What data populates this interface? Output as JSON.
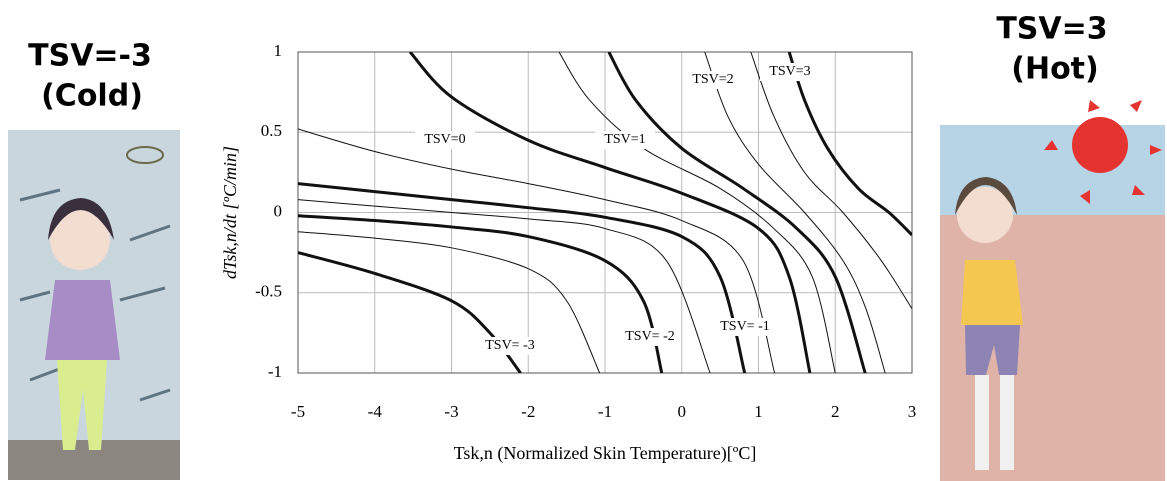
{
  "left_panel": {
    "title": "TSV=-3",
    "subtitle": "(Cold)"
  },
  "right_panel": {
    "title": "TSV=3",
    "subtitle": "(Hot)"
  },
  "chart_data": {
    "type": "line",
    "xlabel": "Tsk,n (Normalized Skin Temperature)[ºC]",
    "ylabel": "dTsk,n/dt [ºC/min]",
    "xlim": [
      -5,
      3
    ],
    "ylim": [
      -1,
      1
    ],
    "xticks": [
      -5,
      -4,
      -3,
      -2,
      -1,
      0,
      1,
      2,
      3
    ],
    "yticks": [
      -1,
      -0.5,
      0,
      0.5,
      1
    ],
    "grid": true,
    "color": "#111",
    "annotations": [
      "TSV=3",
      "TSV=2",
      "TSV=1",
      "TSV=0",
      "TSV= -1",
      "TSV= -2",
      "TSV= -3"
    ],
    "series": [
      {
        "width": 3,
        "x": [
          1.4,
          1.6,
          1.9,
          2.3,
          2.7,
          3
        ],
        "values": [
          1,
          0.7,
          0.4,
          0.15,
          0,
          -0.14
        ]
      },
      {
        "width": 1,
        "x": [
          0.9,
          1.2,
          1.6,
          2.1,
          2.6,
          3
        ],
        "values": [
          1,
          0.6,
          0.25,
          0,
          -0.3,
          -0.6
        ]
      },
      {
        "width": 1,
        "x": [
          0.3,
          0.6,
          1.0,
          1.6,
          2.1,
          2.4,
          2.65
        ],
        "values": [
          1,
          0.6,
          0.3,
          0,
          -0.3,
          -0.6,
          -1
        ]
      },
      {
        "width": 3,
        "x": [
          -0.95,
          -0.6,
          0,
          0.8,
          1.5,
          2.0,
          2.39
        ],
        "values": [
          1,
          0.7,
          0.4,
          0.15,
          -0.1,
          -0.4,
          -1
        ]
      },
      {
        "width": 1,
        "x": [
          -1.6,
          -1.2,
          -0.5,
          0.5,
          1.2,
          1.7,
          2.0
        ],
        "values": [
          1,
          0.7,
          0.4,
          0.15,
          -0.1,
          -0.4,
          -1
        ]
      },
      {
        "width": 3,
        "x": [
          -3.54,
          -3,
          -2,
          -1,
          0,
          1,
          1.4,
          1.67
        ],
        "values": [
          1,
          0.72,
          0.45,
          0.28,
          0.12,
          -0.1,
          -0.4,
          -1
        ]
      },
      {
        "width": 1,
        "x": [
          -5,
          -4,
          -3,
          -2,
          -1,
          0,
          0.8,
          1.21
        ],
        "values": [
          0.52,
          0.38,
          0.27,
          0.18,
          0.08,
          -0.05,
          -0.3,
          -1
        ]
      },
      {
        "width": 3,
        "x": [
          -5,
          -4,
          -3,
          -2,
          -1,
          0,
          0.5,
          0.82
        ],
        "values": [
          0.18,
          0.13,
          0.08,
          0.03,
          -0.03,
          -0.15,
          -0.4,
          -1
        ]
      },
      {
        "width": 1,
        "x": [
          -5,
          -4,
          -3,
          -2,
          -1,
          -0.2,
          0.37
        ],
        "values": [
          0.08,
          0.04,
          0,
          -0.04,
          -0.1,
          -0.3,
          -1
        ]
      },
      {
        "width": 3,
        "x": [
          -5,
          -4,
          -3,
          -2,
          -1,
          -0.5,
          -0.26
        ],
        "values": [
          -0.02,
          -0.05,
          -0.09,
          -0.15,
          -0.3,
          -0.55,
          -1
        ]
      },
      {
        "width": 1,
        "x": [
          -5,
          -4,
          -3,
          -2,
          -1.5,
          -1.07
        ],
        "values": [
          -0.12,
          -0.16,
          -0.22,
          -0.35,
          -0.55,
          -1
        ]
      },
      {
        "width": 3,
        "x": [
          -5,
          -4,
          -3,
          -2.5,
          -2.1
        ],
        "values": [
          -0.25,
          -0.38,
          -0.55,
          -0.75,
          -1
        ]
      }
    ]
  }
}
